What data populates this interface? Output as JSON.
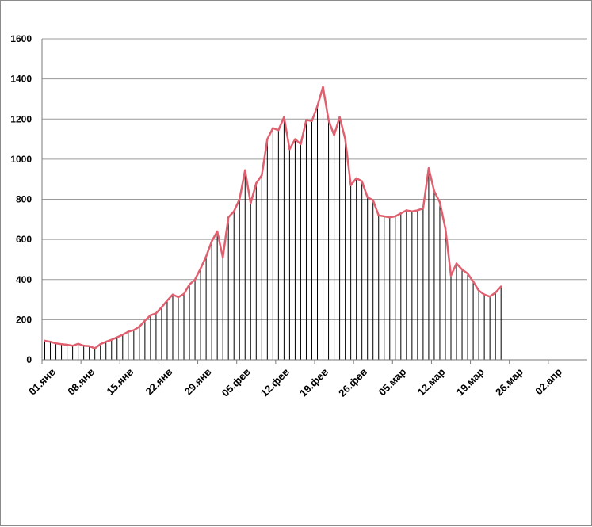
{
  "chart_data": {
    "type": "line",
    "title": "",
    "xlabel": "",
    "ylabel": "",
    "ylim": [
      0,
      1600
    ],
    "yticks": [
      0,
      200,
      400,
      600,
      800,
      1000,
      1200,
      1400,
      1600
    ],
    "xtick_labels": [
      "01.янв",
      "08.янв",
      "15.янв",
      "22.янв",
      "29.янв",
      "05.фев",
      "12.фев",
      "19.фев",
      "26.фев",
      "05.мар",
      "12.мар",
      "19.мар",
      "26.мар",
      "02.апр"
    ],
    "x_days": 98,
    "grid": true,
    "legend": "none",
    "series": [
      {
        "color": "#e06070",
        "drop_line_color": "#000000",
        "values": [
          95,
          90,
          82,
          78,
          75,
          70,
          80,
          70,
          68,
          57,
          78,
          90,
          100,
          112,
          125,
          140,
          148,
          165,
          195,
          222,
          232,
          262,
          295,
          325,
          312,
          328,
          375,
          400,
          455,
          515,
          590,
          640,
          510,
          710,
          740,
          800,
          945,
          780,
          880,
          920,
          1100,
          1155,
          1145,
          1210,
          1050,
          1100,
          1075,
          1195,
          1190,
          1265,
          1360,
          1195,
          1120,
          1210,
          1100,
          870,
          905,
          890,
          810,
          795,
          720,
          715,
          710,
          715,
          730,
          745,
          740,
          745,
          755,
          955,
          840,
          785,
          655,
          420,
          480,
          450,
          430,
          390,
          345,
          325,
          315,
          335,
          365
        ]
      }
    ]
  }
}
